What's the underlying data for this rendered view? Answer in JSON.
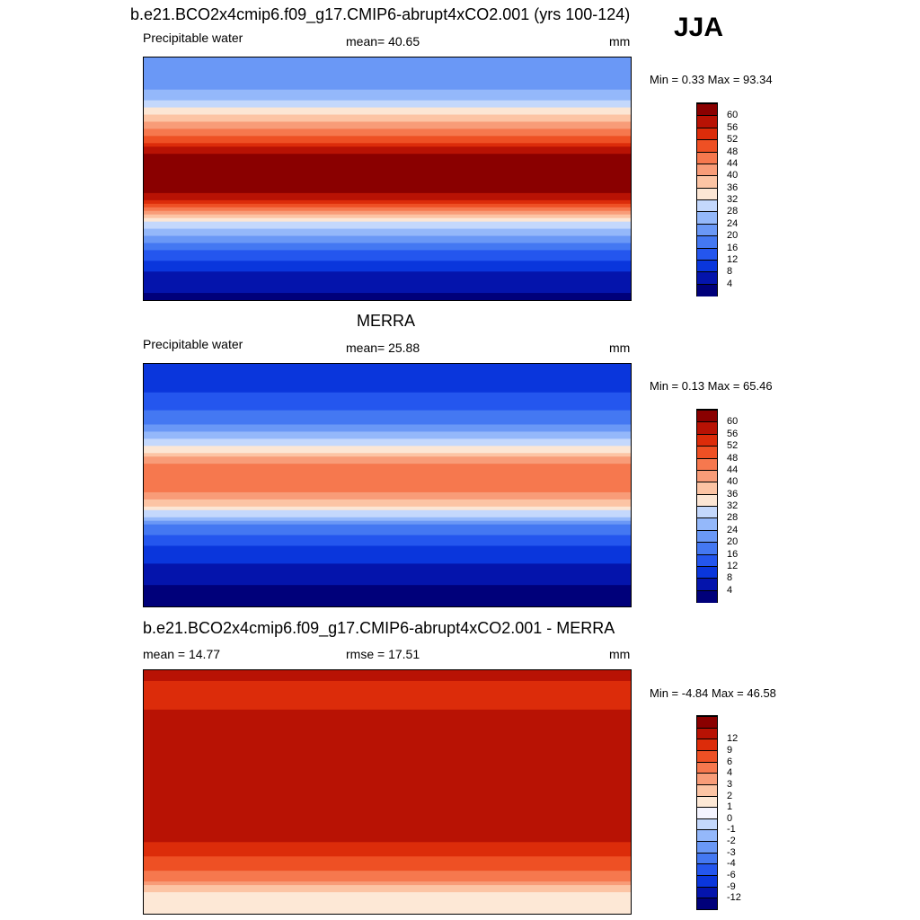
{
  "season": "JJA",
  "colors": {
    "upper": [
      "#00007a",
      "#0414ac",
      "#0a36dc",
      "#2456ee",
      "#4478f2",
      "#6a98f6",
      "#94b8fa",
      "#c4d8fc",
      "#fce6d4",
      "#fcc4a4",
      "#f89c78",
      "#f6784e",
      "#ee5024",
      "#dc2c0a",
      "#b81204",
      "#8a0000"
    ],
    "diff": [
      "#00007a",
      "#0414ac",
      "#0a36dc",
      "#2456ee",
      "#4478f2",
      "#6a98f6",
      "#94b8fa",
      "#c4d8fc",
      "#f4f4ff",
      "#fde8d6",
      "#fcc4a4",
      "#f89c78",
      "#f6784e",
      "#ee5024",
      "#dc2c0a",
      "#b81204",
      "#8a0000"
    ]
  },
  "panels": [
    {
      "title": "b.e21.BCO2x4cmip6.f09_g17.CMIP6-abrupt4xCO2.001 (yrs 100-124)",
      "left_label": "Precipitable water",
      "center_label": "mean=  40.65",
      "units": "mm",
      "minmax": "Min =   0.33 Max =  93.34",
      "colorbar": [
        "4",
        "8",
        "12",
        "16",
        "20",
        "24",
        "28",
        "32",
        "36",
        "40",
        "44",
        "48",
        "52",
        "56",
        "60"
      ]
    },
    {
      "title": "MERRA",
      "left_label": "Precipitable water",
      "center_label": "mean=  25.88",
      "units": "mm",
      "minmax": "Min =   0.13 Max =  65.46",
      "colorbar": [
        "4",
        "8",
        "12",
        "16",
        "20",
        "24",
        "28",
        "32",
        "36",
        "40",
        "44",
        "48",
        "52",
        "56",
        "60"
      ]
    },
    {
      "title": "b.e21.BCO2x4cmip6.f09_g17.CMIP6-abrupt4xCO2.001 - MERRA",
      "left_label": "mean =  14.77",
      "center_label": "rmse =  17.51",
      "units": "mm",
      "minmax": "Min =  -4.84 Max =  46.58",
      "colorbar": [
        "-12",
        "-9",
        "-6",
        "-4",
        "-3",
        "-2",
        "-1",
        "0",
        "1",
        "2",
        "3",
        "4",
        "6",
        "9",
        "12"
      ]
    }
  ],
  "chart_data": [
    {
      "type": "heatmap",
      "title": "b.e21.BCO2x4cmip6.f09_g17.CMIP6-abrupt4xCO2.001 (yrs 100-124)",
      "variable": "Precipitable water",
      "units": "mm",
      "mean": 40.65,
      "min": 0.33,
      "max": 93.34,
      "levels": [
        4,
        8,
        12,
        16,
        20,
        24,
        28,
        32,
        36,
        40,
        44,
        48,
        52,
        56,
        60
      ],
      "zonal_profile": {
        "lat": [
          90,
          75,
          60,
          45,
          30,
          15,
          0,
          -15,
          -30,
          -45,
          -60,
          -75,
          -90
        ],
        "value": [
          24,
          20,
          26,
          38,
          50,
          62,
          64,
          58,
          34,
          22,
          12,
          6,
          3
        ]
      }
    },
    {
      "type": "heatmap",
      "title": "MERRA",
      "variable": "Precipitable water",
      "units": "mm",
      "mean": 25.88,
      "min": 0.13,
      "max": 65.46,
      "levels": [
        4,
        8,
        12,
        16,
        20,
        24,
        28,
        32,
        36,
        40,
        44,
        48,
        52,
        56,
        60
      ],
      "zonal_profile": {
        "lat": [
          90,
          75,
          60,
          45,
          30,
          15,
          0,
          -15,
          -30,
          -45,
          -60,
          -75,
          -90
        ],
        "value": [
          10,
          10,
          14,
          20,
          32,
          44,
          48,
          36,
          20,
          12,
          7,
          4,
          2
        ]
      }
    },
    {
      "type": "heatmap",
      "title": "b.e21.BCO2x4cmip6.f09_g17.CMIP6-abrupt4xCO2.001 - MERRA",
      "units": "mm",
      "mean": 14.77,
      "rmse": 17.51,
      "min": -4.84,
      "max": 46.58,
      "levels": [
        -12,
        -9,
        -6,
        -4,
        -3,
        -2,
        -1,
        0,
        1,
        2,
        3,
        4,
        6,
        9,
        12
      ],
      "zonal_profile": {
        "lat": [
          90,
          75,
          60,
          45,
          30,
          15,
          0,
          -15,
          -30,
          -45,
          -60,
          -75,
          -90
        ],
        "value": [
          13,
          11,
          12,
          18,
          18,
          18,
          16,
          22,
          14,
          10,
          5,
          2,
          1
        ]
      }
    }
  ]
}
